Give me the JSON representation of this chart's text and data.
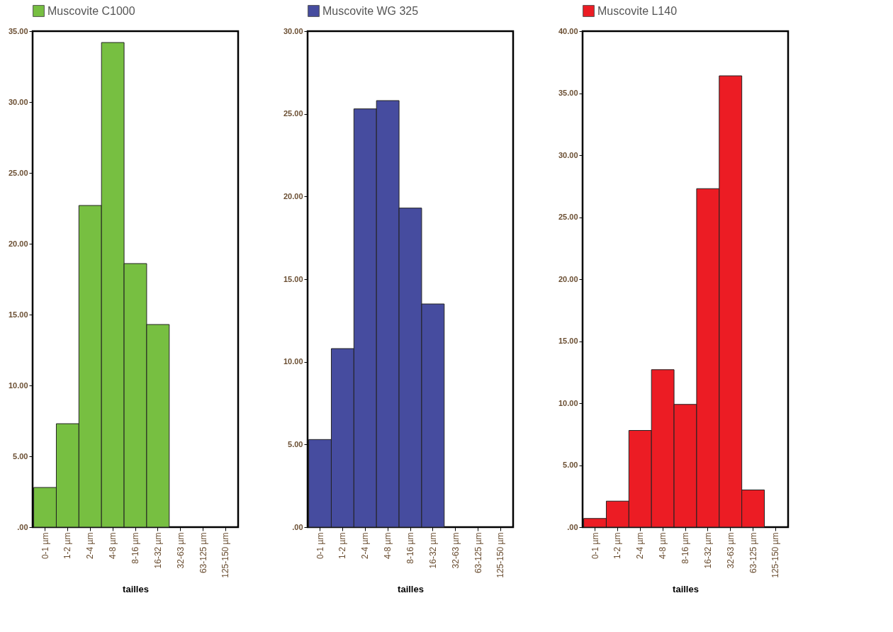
{
  "chart_data": [
    {
      "type": "bar",
      "xlabel": "tailles",
      "categories": [
        "0-1 µm",
        "1-2 µm",
        "2-4 µm",
        "4-8 µm",
        "8-16 µm",
        "16-32 µm",
        "32-63 µm",
        "63-125 µm",
        "125-150 µm"
      ],
      "series": [
        {
          "name": "Muscovite C1000",
          "color": "#77bf41",
          "values": [
            2.8,
            7.3,
            22.7,
            34.2,
            18.6,
            14.3,
            0,
            0,
            0
          ]
        }
      ],
      "ylim": [
        0,
        35
      ],
      "yticks": [
        {
          "value": 0,
          "label": ".00"
        },
        {
          "value": 5,
          "label": "5.00"
        },
        {
          "value": 10,
          "label": "10.00"
        },
        {
          "value": 15,
          "label": "15.00"
        },
        {
          "value": 20,
          "label": "20.00"
        },
        {
          "value": 25,
          "label": "25.00"
        },
        {
          "value": 30,
          "label": "30.00"
        },
        {
          "value": 35,
          "label": "35.00"
        }
      ],
      "legend": "top"
    },
    {
      "type": "bar",
      "xlabel": "tailles",
      "categories": [
        "0-1 µm",
        "1-2 µm",
        "2-4 µm",
        "4-8 µm",
        "8-16 µm",
        "16-32 µm",
        "32-63 µm",
        "63-125 µm",
        "125-150 µm"
      ],
      "series": [
        {
          "name": "Muscovite WG 325",
          "color": "#464c9f",
          "values": [
            5.3,
            10.8,
            25.3,
            25.8,
            19.3,
            13.5,
            0,
            0,
            0
          ]
        }
      ],
      "ylim": [
        0,
        30
      ],
      "yticks": [
        {
          "value": 0,
          "label": ".00"
        },
        {
          "value": 5,
          "label": "5.00"
        },
        {
          "value": 10,
          "label": "10.00"
        },
        {
          "value": 15,
          "label": "15.00"
        },
        {
          "value": 20,
          "label": "20.00"
        },
        {
          "value": 25,
          "label": "25.00"
        },
        {
          "value": 30,
          "label": "30.00"
        }
      ],
      "legend": "top"
    },
    {
      "type": "bar",
      "xlabel": "tailles",
      "categories": [
        "0-1 µm",
        "1-2 µm",
        "2-4 µm",
        "4-8 µm",
        "8-16 µm",
        "16-32 µm",
        "32-63 µm",
        "63-125 µm",
        "125-150 µm"
      ],
      "series": [
        {
          "name": "Muscovite L140",
          "color": "#ec1c24",
          "values": [
            0.7,
            2.1,
            7.8,
            12.7,
            9.9,
            27.3,
            36.4,
            3.0,
            0
          ]
        }
      ],
      "ylim": [
        0,
        40
      ],
      "yticks": [
        {
          "value": 0,
          "label": ".00"
        },
        {
          "value": 5,
          "label": "5.00"
        },
        {
          "value": 10,
          "label": "10.00"
        },
        {
          "value": 15,
          "label": "15.00"
        },
        {
          "value": 20,
          "label": "20.00"
        },
        {
          "value": 25,
          "label": "25.00"
        },
        {
          "value": 30,
          "label": "30.00"
        },
        {
          "value": 35,
          "label": "35.00"
        },
        {
          "value": 40,
          "label": "40.00"
        }
      ],
      "legend": "top"
    }
  ]
}
